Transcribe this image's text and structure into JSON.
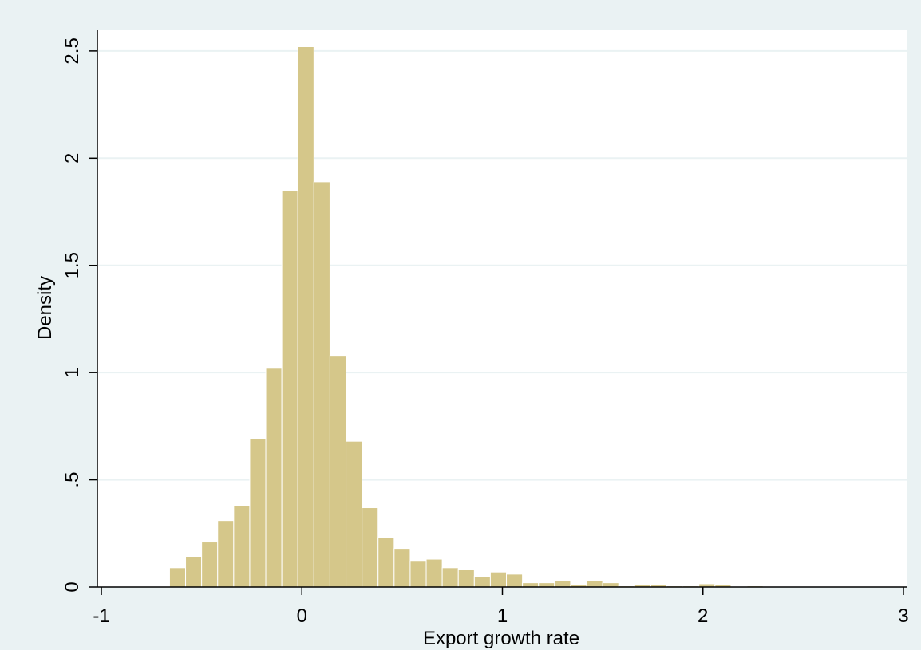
{
  "chart_data": {
    "type": "bar",
    "title": "",
    "xlabel": "Export growth rate",
    "ylabel": "Density",
    "xlim": [
      -1.02,
      3.02
    ],
    "ylim": [
      0,
      2.6
    ],
    "x_ticks": [
      -1,
      0,
      1,
      2,
      3
    ],
    "x_tick_labels": [
      "-1",
      "0",
      "1",
      "2",
      "3"
    ],
    "y_ticks": [
      0,
      0.5,
      1,
      1.5,
      2,
      2.5
    ],
    "y_tick_labels": [
      "0",
      ".5",
      "1",
      "1.5",
      "2",
      "2.5"
    ],
    "grid": "horizontal",
    "bin_width": 0.08,
    "bins": [
      {
        "x0": -0.66,
        "x1": -0.58,
        "density": 0.09
      },
      {
        "x0": -0.58,
        "x1": -0.5,
        "density": 0.14
      },
      {
        "x0": -0.5,
        "x1": -0.42,
        "density": 0.21
      },
      {
        "x0": -0.42,
        "x1": -0.34,
        "density": 0.31
      },
      {
        "x0": -0.34,
        "x1": -0.26,
        "density": 0.38
      },
      {
        "x0": -0.26,
        "x1": -0.18,
        "density": 0.69
      },
      {
        "x0": -0.18,
        "x1": -0.1,
        "density": 1.02
      },
      {
        "x0": -0.1,
        "x1": -0.02,
        "density": 1.85
      },
      {
        "x0": -0.02,
        "x1": 0.06,
        "density": 2.52
      },
      {
        "x0": 0.06,
        "x1": 0.14,
        "density": 1.89
      },
      {
        "x0": 0.14,
        "x1": 0.22,
        "density": 1.08
      },
      {
        "x0": 0.22,
        "x1": 0.3,
        "density": 0.68
      },
      {
        "x0": 0.3,
        "x1": 0.38,
        "density": 0.37
      },
      {
        "x0": 0.38,
        "x1": 0.46,
        "density": 0.23
      },
      {
        "x0": 0.46,
        "x1": 0.54,
        "density": 0.18
      },
      {
        "x0": 0.54,
        "x1": 0.62,
        "density": 0.12
      },
      {
        "x0": 0.62,
        "x1": 0.7,
        "density": 0.13
      },
      {
        "x0": 0.7,
        "x1": 0.78,
        "density": 0.09
      },
      {
        "x0": 0.78,
        "x1": 0.86,
        "density": 0.08
      },
      {
        "x0": 0.86,
        "x1": 0.94,
        "density": 0.05
      },
      {
        "x0": 0.94,
        "x1": 1.02,
        "density": 0.07
      },
      {
        "x0": 1.02,
        "x1": 1.1,
        "density": 0.06
      },
      {
        "x0": 1.1,
        "x1": 1.18,
        "density": 0.02
      },
      {
        "x0": 1.18,
        "x1": 1.26,
        "density": 0.02
      },
      {
        "x0": 1.26,
        "x1": 1.34,
        "density": 0.03
      },
      {
        "x0": 1.34,
        "x1": 1.42,
        "density": 0.01
      },
      {
        "x0": 1.42,
        "x1": 1.5,
        "density": 0.03
      },
      {
        "x0": 1.5,
        "x1": 1.58,
        "density": 0.02
      },
      {
        "x0": 1.58,
        "x1": 1.66,
        "density": 0.005
      },
      {
        "x0": 1.66,
        "x1": 1.74,
        "density": 0.01
      },
      {
        "x0": 1.74,
        "x1": 1.82,
        "density": 0.01
      },
      {
        "x0": 1.82,
        "x1": 1.9,
        "density": 0.005
      },
      {
        "x0": 1.9,
        "x1": 1.98,
        "density": 0.005
      },
      {
        "x0": 1.98,
        "x1": 2.06,
        "density": 0.015
      },
      {
        "x0": 2.06,
        "x1": 2.14,
        "density": 0.01
      },
      {
        "x0": 2.14,
        "x1": 2.22,
        "density": 0.0
      },
      {
        "x0": 2.22,
        "x1": 2.3,
        "density": 0.005
      }
    ],
    "colors": {
      "outer_background": "#eaf2f3",
      "plot_background": "#ffffff",
      "bar_fill": "#d5c78a",
      "bar_edge": "#ffffff",
      "grid": "#eaf2f3",
      "axis": "#000000"
    }
  }
}
